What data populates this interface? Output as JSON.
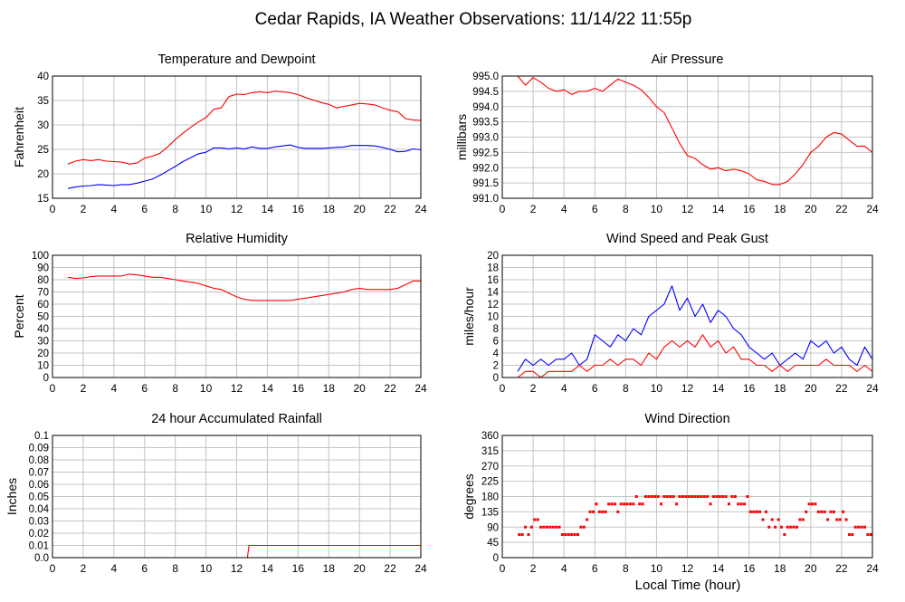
{
  "page": {
    "title": "Cedar Rapids, IA Weather Observations: 11/14/22 11:55p",
    "xlabel_bottom": "Local Time (hour)"
  },
  "chart_data": [
    {
      "id": "temp",
      "type": "line",
      "title": "Temperature and Dewpoint",
      "ylabel": "Fahrenheit",
      "xlim": [
        0,
        24
      ],
      "xticks": [
        0,
        2,
        4,
        6,
        8,
        10,
        12,
        14,
        16,
        18,
        20,
        22,
        24
      ],
      "ylim": [
        15,
        40
      ],
      "yticks": [
        15,
        20,
        25,
        30,
        35,
        40
      ],
      "grid": true,
      "series": [
        {
          "color": "#ff0000",
          "x": [
            1,
            1.5,
            2,
            2.5,
            3,
            3.5,
            4,
            4.5,
            5,
            5.5,
            6,
            6.5,
            7,
            7.5,
            8,
            8.5,
            9,
            9.5,
            10,
            10.5,
            11,
            11.5,
            12,
            12.5,
            13,
            13.5,
            14,
            14.5,
            15,
            15.5,
            16,
            16.5,
            17,
            17.5,
            18,
            18.5,
            19,
            19.5,
            20,
            20.5,
            21,
            21.5,
            22,
            22.5,
            23,
            23.5,
            24
          ],
          "y": [
            22,
            22.6,
            22.9,
            22.7,
            22.9,
            22.6,
            22.5,
            22.4,
            22,
            22.2,
            23.2,
            23.6,
            24.2,
            25.5,
            27,
            28.3,
            29.5,
            30.6,
            31.5,
            33.2,
            33.5,
            35.8,
            36.3,
            36.2,
            36.6,
            36.8,
            36.6,
            36.9,
            36.8,
            36.6,
            36.2,
            35.6,
            35.1,
            34.6,
            34.2,
            33.5,
            33.8,
            34.1,
            34.4,
            34.3,
            34.1,
            33.5,
            33,
            32.7,
            31.3,
            31,
            30.9
          ]
        },
        {
          "color": "#0000ff",
          "x": [
            1,
            1.5,
            2,
            2.5,
            3,
            3.5,
            4,
            4.5,
            5,
            5.5,
            6,
            6.5,
            7,
            7.5,
            8,
            8.5,
            9,
            9.5,
            10,
            10.5,
            11,
            11.5,
            12,
            12.5,
            13,
            13.5,
            14,
            14.5,
            15,
            15.5,
            16,
            16.5,
            17,
            17.5,
            18,
            18.5,
            19,
            19.5,
            20,
            20.5,
            21,
            21.5,
            22,
            22.5,
            23,
            23.5,
            24
          ],
          "y": [
            17,
            17.3,
            17.5,
            17.6,
            17.8,
            17.7,
            17.6,
            17.8,
            17.8,
            18.1,
            18.5,
            18.9,
            19.7,
            20.6,
            21.5,
            22.5,
            23.3,
            24.1,
            24.4,
            25.3,
            25.3,
            25.1,
            25.3,
            25.1,
            25.5,
            25.2,
            25.2,
            25.5,
            25.7,
            25.9,
            25.4,
            25.2,
            25.2,
            25.2,
            25.3,
            25.4,
            25.5,
            25.8,
            25.8,
            25.8,
            25.7,
            25.4,
            25,
            24.5,
            24.6,
            25.1,
            24.9
          ]
        }
      ]
    },
    {
      "id": "pressure",
      "type": "line",
      "title": "Air Pressure",
      "ylabel": "millibars",
      "xlim": [
        0,
        24
      ],
      "xticks": [
        0,
        2,
        4,
        6,
        8,
        10,
        12,
        14,
        16,
        18,
        20,
        22,
        24
      ],
      "ylim": [
        991.0,
        995.0
      ],
      "yticks": [
        991.0,
        991.5,
        992.0,
        992.5,
        993.0,
        993.5,
        994.0,
        994.5,
        995.0
      ],
      "ytick_labels": [
        "991.0",
        "991.5",
        "992.0",
        "992.5",
        "993.0",
        "993.5",
        "994.0",
        "994.5",
        "995.0"
      ],
      "grid": true,
      "series": [
        {
          "color": "#ff0000",
          "x": [
            1,
            1.5,
            2,
            2.5,
            3,
            3.5,
            4,
            4.5,
            5,
            5.5,
            6,
            6.5,
            7,
            7.5,
            8,
            8.5,
            9,
            9.5,
            10,
            10.5,
            11,
            11.5,
            12,
            12.5,
            13,
            13.5,
            14,
            14.5,
            15,
            15.5,
            16,
            16.5,
            17,
            17.5,
            18,
            18.5,
            19,
            19.5,
            20,
            20.5,
            21,
            21.5,
            22,
            22.5,
            23,
            23.5,
            24
          ],
          "y": [
            995.0,
            994.7,
            994.95,
            994.8,
            994.6,
            994.5,
            994.55,
            994.4,
            994.5,
            994.5,
            994.6,
            994.5,
            994.7,
            994.9,
            994.8,
            994.7,
            994.55,
            994.3,
            994.0,
            993.8,
            993.3,
            992.8,
            992.4,
            992.3,
            992.1,
            991.95,
            992.0,
            991.9,
            991.95,
            991.9,
            991.8,
            991.6,
            991.55,
            991.45,
            991.45,
            991.55,
            991.8,
            992.1,
            992.5,
            992.7,
            993.0,
            993.15,
            993.1,
            992.9,
            992.7,
            992.7,
            992.5
          ]
        }
      ]
    },
    {
      "id": "humidity",
      "type": "line",
      "title": "Relative Humidity",
      "ylabel": "Percent",
      "xlim": [
        0,
        24
      ],
      "xticks": [
        0,
        2,
        4,
        6,
        8,
        10,
        12,
        14,
        16,
        18,
        20,
        22,
        24
      ],
      "ylim": [
        0,
        100
      ],
      "yticks": [
        0,
        10,
        20,
        30,
        40,
        50,
        60,
        70,
        80,
        90,
        100
      ],
      "grid": true,
      "series": [
        {
          "color": "#ff0000",
          "x": [
            1,
            1.5,
            2,
            2.5,
            3,
            3.5,
            4,
            4.5,
            5,
            5.5,
            6,
            6.5,
            7,
            7.5,
            8,
            8.5,
            9,
            9.5,
            10,
            10.5,
            11,
            11.5,
            12,
            12.5,
            13,
            13.5,
            14,
            14.5,
            15,
            15.5,
            16,
            16.5,
            17,
            17.5,
            18,
            18.5,
            19,
            19.5,
            20,
            20.5,
            21,
            21.5,
            22,
            22.5,
            23,
            23.5,
            24
          ],
          "y": [
            82,
            81,
            81.5,
            82.5,
            83,
            83,
            83,
            83,
            84.5,
            84,
            83,
            82,
            82,
            81,
            80,
            79,
            78,
            77,
            75,
            73,
            72,
            69,
            66,
            64,
            63,
            63,
            63,
            63,
            63,
            63,
            64,
            65,
            66,
            67,
            68,
            69,
            70,
            72,
            73,
            72,
            72,
            72,
            72,
            73,
            76,
            79,
            79
          ]
        }
      ]
    },
    {
      "id": "wind",
      "type": "line",
      "title": "Wind Speed and Peak Gust",
      "ylabel": "miles/hour",
      "xlim": [
        0,
        24
      ],
      "xticks": [
        0,
        2,
        4,
        6,
        8,
        10,
        12,
        14,
        16,
        18,
        20,
        22,
        24
      ],
      "ylim": [
        0,
        20
      ],
      "yticks": [
        0,
        2,
        4,
        6,
        8,
        10,
        12,
        14,
        16,
        18,
        20
      ],
      "grid": true,
      "series": [
        {
          "color": "#0000ff",
          "x": [
            1,
            1.5,
            2,
            2.5,
            3,
            3.5,
            4,
            4.5,
            5,
            5.5,
            6,
            6.5,
            7,
            7.5,
            8,
            8.5,
            9,
            9.5,
            10,
            10.5,
            11,
            11.5,
            12,
            12.5,
            13,
            13.5,
            14,
            14.5,
            15,
            15.5,
            16,
            16.5,
            17,
            17.5,
            18,
            18.5,
            19,
            19.5,
            20,
            20.5,
            21,
            21.5,
            22,
            22.5,
            23,
            23.5,
            24
          ],
          "y": [
            1,
            3,
            2,
            3,
            2,
            3,
            3,
            4,
            2,
            3,
            7,
            6,
            5,
            7,
            6,
            8,
            7,
            10,
            11,
            12,
            15,
            11,
            13,
            10,
            12,
            9,
            11,
            10,
            8,
            7,
            5,
            4,
            3,
            4,
            2,
            3,
            4,
            3,
            6,
            5,
            6,
            4,
            5,
            3,
            2,
            5,
            3
          ]
        },
        {
          "color": "#ff0000",
          "x": [
            1,
            1.5,
            2,
            2.5,
            3,
            3.5,
            4,
            4.5,
            5,
            5.5,
            6,
            6.5,
            7,
            7.5,
            8,
            8.5,
            9,
            9.5,
            10,
            10.5,
            11,
            11.5,
            12,
            12.5,
            13,
            13.5,
            14,
            14.5,
            15,
            15.5,
            16,
            16.5,
            17,
            17.5,
            18,
            18.5,
            19,
            19.5,
            20,
            20.5,
            21,
            21.5,
            22,
            22.5,
            23,
            23.5,
            24
          ],
          "y": [
            0,
            1,
            1,
            0,
            1,
            1,
            1,
            1,
            2,
            1,
            2,
            2,
            3,
            2,
            3,
            3,
            2,
            4,
            3,
            5,
            6,
            5,
            6,
            5,
            7,
            5,
            6,
            4,
            5,
            3,
            3,
            2,
            2,
            1,
            2,
            1,
            2,
            2,
            2,
            2,
            3,
            2,
            2,
            2,
            1,
            2,
            1
          ]
        }
      ]
    },
    {
      "id": "rain",
      "type": "line",
      "title": "24 hour Accumulated Rainfall",
      "ylabel": "Inches",
      "xlim": [
        0,
        24
      ],
      "xticks": [
        0,
        2,
        4,
        6,
        8,
        10,
        12,
        14,
        16,
        18,
        20,
        22,
        24
      ],
      "ylim": [
        0,
        0.1
      ],
      "yticks": [
        0.0,
        0.01,
        0.02,
        0.03,
        0.04,
        0.05,
        0.06,
        0.07,
        0.08,
        0.09,
        0.1
      ],
      "ytick_labels": [
        "0.0",
        "0.01",
        "0.02",
        "0.03",
        "0.04",
        "0.05",
        "0.06",
        "0.07",
        "0.08",
        "0.09",
        "0.1"
      ],
      "grid": true,
      "series": [
        {
          "color": "#ff0000",
          "x": [
            1,
            12.7,
            12.8,
            24
          ],
          "y": [
            0,
            0,
            0.01,
            0.01
          ]
        }
      ]
    },
    {
      "id": "direction",
      "type": "scatter",
      "title": "Wind Direction",
      "ylabel": "degrees",
      "xlim": [
        0,
        24
      ],
      "xticks": [
        0,
        2,
        4,
        6,
        8,
        10,
        12,
        14,
        16,
        18,
        20,
        22,
        24
      ],
      "ylim": [
        0,
        360
      ],
      "yticks": [
        0,
        45,
        90,
        135,
        180,
        225,
        270,
        315,
        360
      ],
      "grid": true,
      "series": [
        {
          "color": "#ff0000",
          "x": [
            1.1,
            1.3,
            1.5,
            1.7,
            1.9,
            2.1,
            2.3,
            2.5,
            2.7,
            2.9,
            3.1,
            3.3,
            3.5,
            3.7,
            3.9,
            4.1,
            4.3,
            4.5,
            4.7,
            4.9,
            5.1,
            5.3,
            5.5,
            5.7,
            5.9,
            6.1,
            6.3,
            6.5,
            6.7,
            6.9,
            7.1,
            7.3,
            7.5,
            7.7,
            7.9,
            8.1,
            8.3,
            8.5,
            8.7,
            8.9,
            9.1,
            9.3,
            9.5,
            9.7,
            9.9,
            10.1,
            10.3,
            10.5,
            10.7,
            10.9,
            11.1,
            11.3,
            11.5,
            11.7,
            11.9,
            12.1,
            12.3,
            12.5,
            12.7,
            12.9,
            13.1,
            13.3,
            13.5,
            13.7,
            13.9,
            14.1,
            14.3,
            14.5,
            14.7,
            14.9,
            15.1,
            15.3,
            15.5,
            15.7,
            15.9,
            16.1,
            16.3,
            16.5,
            16.7,
            16.9,
            17.1,
            17.3,
            17.5,
            17.7,
            17.9,
            18.1,
            18.3,
            18.5,
            18.7,
            18.9,
            19.1,
            19.3,
            19.5,
            19.7,
            19.9,
            20.1,
            20.3,
            20.5,
            20.7,
            20.9,
            21.1,
            21.3,
            21.5,
            21.7,
            21.9,
            22.1,
            22.3,
            22.5,
            22.7,
            22.9,
            23.1,
            23.3,
            23.5,
            23.7,
            23.9
          ],
          "y": [
            68,
            68,
            90,
            68,
            90,
            112,
            112,
            90,
            90,
            90,
            90,
            90,
            90,
            90,
            68,
            68,
            68,
            68,
            68,
            68,
            90,
            90,
            112,
            135,
            135,
            158,
            135,
            135,
            135,
            158,
            158,
            158,
            135,
            158,
            158,
            158,
            158,
            158,
            180,
            158,
            158,
            180,
            180,
            180,
            180,
            180,
            158,
            180,
            180,
            180,
            180,
            158,
            180,
            180,
            180,
            180,
            180,
            180,
            180,
            180,
            180,
            180,
            158,
            180,
            180,
            180,
            180,
            180,
            158,
            180,
            180,
            158,
            158,
            158,
            180,
            135,
            135,
            135,
            135,
            112,
            135,
            90,
            112,
            90,
            112,
            90,
            68,
            90,
            90,
            90,
            90,
            112,
            112,
            135,
            158,
            158,
            158,
            135,
            135,
            135,
            112,
            135,
            135,
            112,
            112,
            135,
            112,
            68,
            68,
            90,
            90,
            90,
            90,
            68,
            68
          ]
        }
      ]
    }
  ]
}
